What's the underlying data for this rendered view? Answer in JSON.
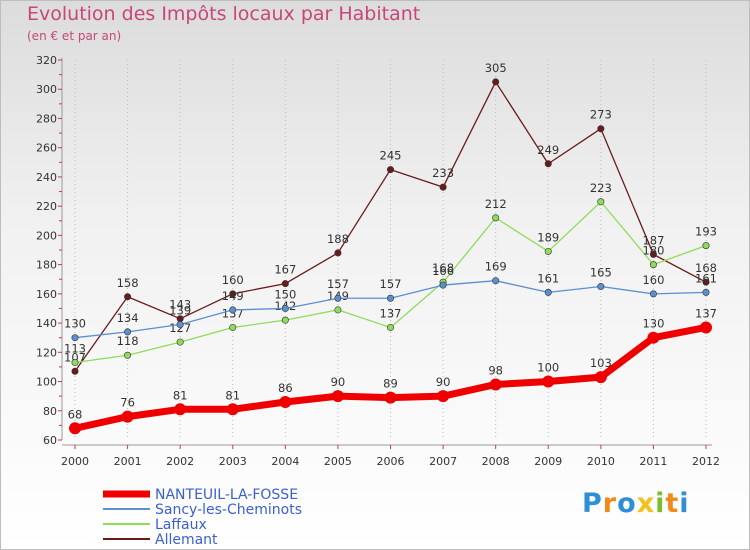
{
  "chart_data": {
    "type": "line",
    "title": "Evolution des Impôts locaux par Habitant",
    "subtitle": "(en € et par an)",
    "x": [
      "2000",
      "2001",
      "2002",
      "2003",
      "2004",
      "2005",
      "2006",
      "2007",
      "2008",
      "2009",
      "2010",
      "2011",
      "2012"
    ],
    "ylim": [
      60,
      320
    ],
    "yticks": [
      60,
      80,
      100,
      120,
      140,
      160,
      180,
      200,
      220,
      240,
      260,
      280,
      300,
      320
    ],
    "grid": "vertical dotted",
    "legend": "bottom-left",
    "series": [
      {
        "name": "NANTEUIL-LA-FOSSE",
        "color": "#ee0000",
        "values": [
          68,
          76,
          81,
          81,
          86,
          90,
          89,
          90,
          98,
          100,
          103,
          130,
          137
        ]
      },
      {
        "name": "Sancy-les-Cheminots",
        "color": "#5b8fcf",
        "values": [
          130,
          134,
          139,
          149,
          150,
          157,
          157,
          166,
          169,
          161,
          165,
          160,
          161
        ]
      },
      {
        "name": "Laffaux",
        "color": "#8fdc5a",
        "values": [
          113,
          118,
          127,
          137,
          142,
          149,
          137,
          168,
          212,
          189,
          223,
          180,
          193
        ]
      },
      {
        "name": "Allemant",
        "color": "#6a1a1a",
        "values": [
          107,
          158,
          143,
          160,
          167,
          188,
          245,
          233,
          305,
          249,
          273,
          187,
          168
        ]
      }
    ]
  },
  "logo": {
    "letters": [
      "P",
      "r",
      "o",
      "x",
      "i",
      "t",
      "i"
    ]
  }
}
